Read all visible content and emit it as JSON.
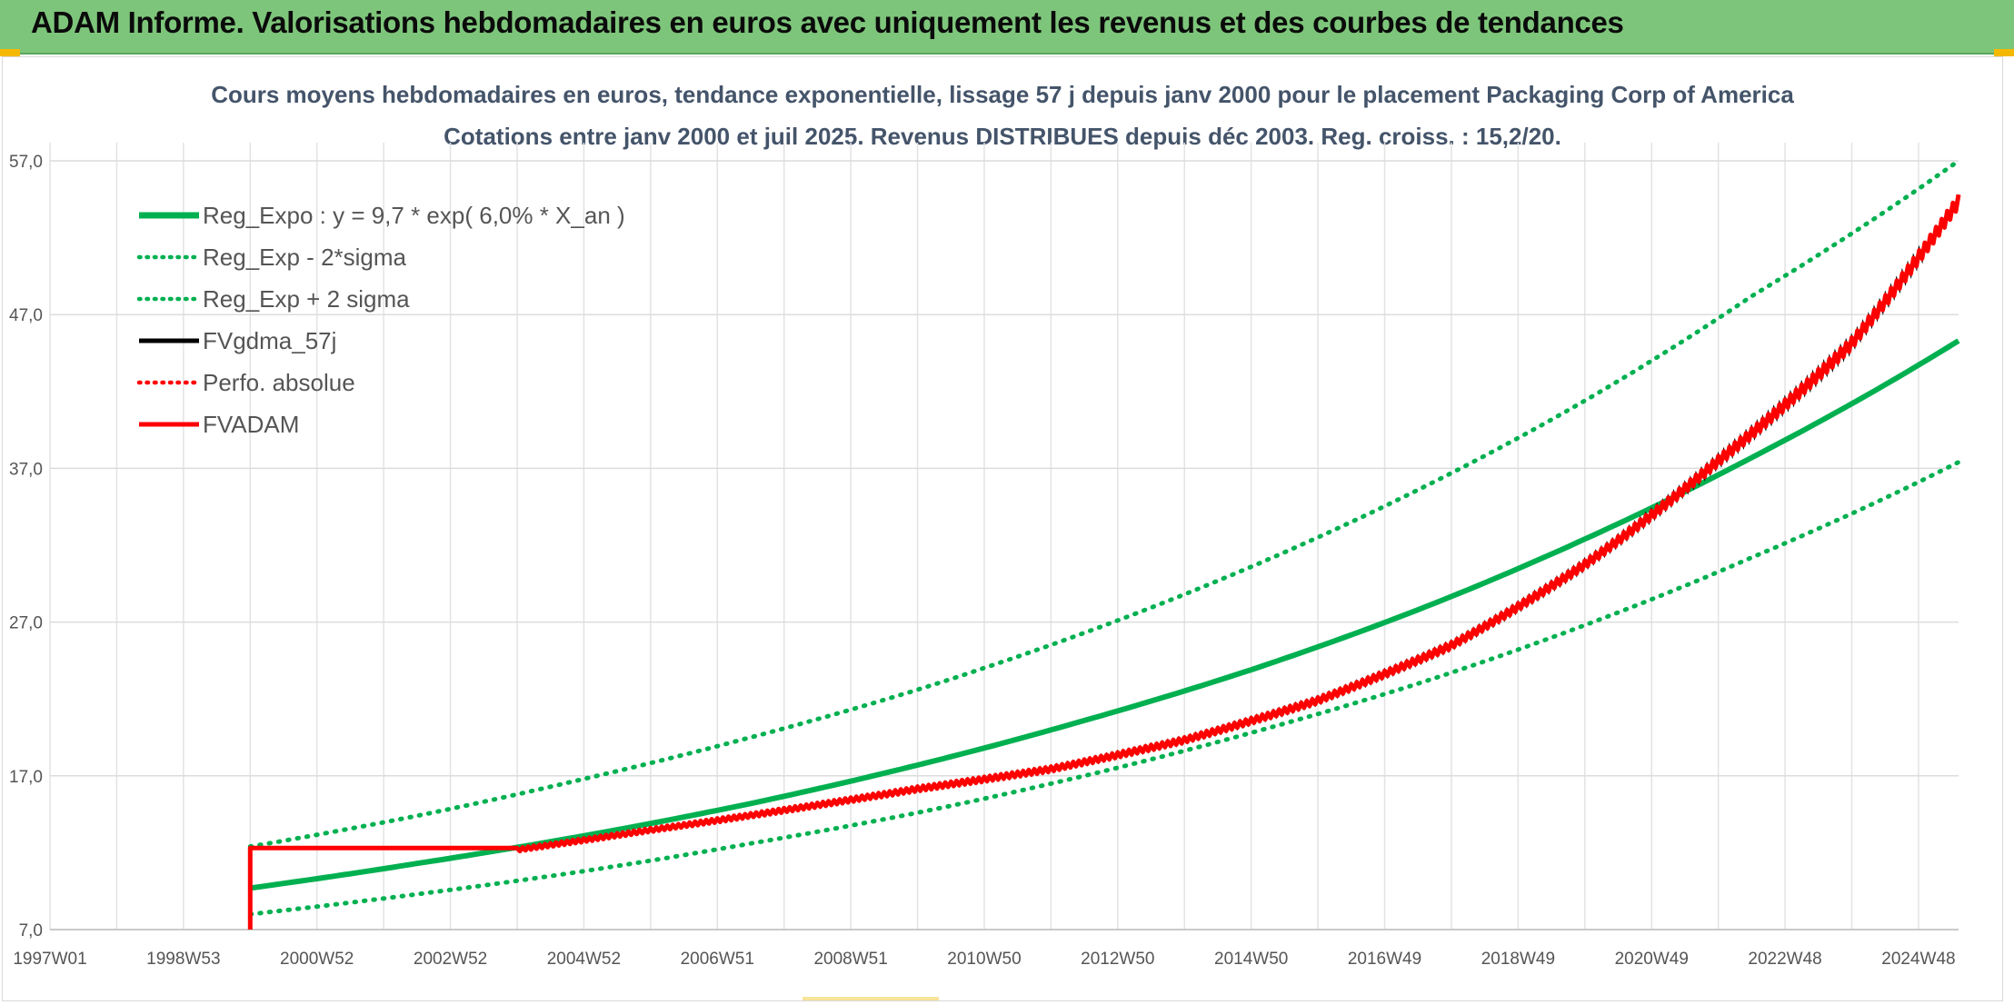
{
  "header": {
    "title": "ADAM Informe. Valorisations hebdomadaires en euros avec uniquement les revenus et des courbes de tendances"
  },
  "colors": {
    "banner": "#7dc57a",
    "trend_green": "#00b050",
    "fvadam_red": "#ff0000",
    "fvgdma_black": "#000000",
    "grid": "#d9d9d9"
  },
  "chart_data": {
    "type": "line",
    "title_line1": "Cours moyens hebdomadaires en euros, tendance exponentielle, lissage 57 j depuis janv 2000 pour le placement Packaging Corp of America",
    "title_line2": "Cotations entre janv 2000 et juil 2025. Revenus DISTRIBUES depuis déc 2003. Reg. croiss. : 15,2/20.",
    "xlabel": "",
    "ylabel": "",
    "x_range_years": [
      1997.0,
      2025.6
    ],
    "x_ticks": [
      {
        "label": "1997W01",
        "year": 1997.0
      },
      {
        "label": "1998W53",
        "year": 1999.0
      },
      {
        "label": "2000W52",
        "year": 2001.0
      },
      {
        "label": "2002W52",
        "year": 2003.0
      },
      {
        "label": "2004W52",
        "year": 2005.0
      },
      {
        "label": "2006W51",
        "year": 2007.0
      },
      {
        "label": "2008W51",
        "year": 2009.0
      },
      {
        "label": "2010W50",
        "year": 2011.0
      },
      {
        "label": "2012W50",
        "year": 2013.0
      },
      {
        "label": "2014W50",
        "year": 2015.0
      },
      {
        "label": "2016W49",
        "year": 2017.0
      },
      {
        "label": "2018W49",
        "year": 2019.0
      },
      {
        "label": "2020W49",
        "year": 2021.0
      },
      {
        "label": "2022W48",
        "year": 2023.0
      },
      {
        "label": "2024W48",
        "year": 2025.0
      }
    ],
    "ylim": [
      7.0,
      57.0
    ],
    "y_ticks": [
      "7,0",
      "17,0",
      "27,0",
      "37,0",
      "47,0",
      "57,0"
    ],
    "grid": true,
    "legend_position": "top-left",
    "legend": [
      {
        "name": "Reg_Expo : y = 9,7 * exp( 6,0% *  X_an )",
        "color": "#00b050",
        "style": "solid"
      },
      {
        "name": "Reg_Exp - 2*sigma",
        "color": "#00b050",
        "style": "dotted"
      },
      {
        "name": "Reg_Exp + 2 sigma",
        "color": "#00b050",
        "style": "dotted"
      },
      {
        "name": "FVgdma_57j",
        "color": "#000000",
        "style": "solid"
      },
      {
        "name": "Perfo. absolue",
        "color": "#ff0000",
        "style": "dotted"
      },
      {
        "name": "FVADAM",
        "color": "#ff0000",
        "style": "solid"
      }
    ],
    "series": [
      {
        "name": "Reg_Expo : y = 9,7 * exp( 6,0% *  X_an )",
        "x": [
          2000.0,
          2002.5,
          2005.0,
          2007.5,
          2010.0,
          2012.5,
          2015.0,
          2017.5,
          2020.0,
          2022.5,
          2025.6
        ],
        "y": [
          9.7,
          11.3,
          13.1,
          15.2,
          17.7,
          20.6,
          23.9,
          27.8,
          32.4,
          37.7,
          45.3
        ]
      },
      {
        "name": "Reg_Exp - 2*sigma",
        "x": [
          2000.0,
          2002.5,
          2005.0,
          2007.5,
          2010.0,
          2012.5,
          2015.0,
          2017.5,
          2020.0,
          2022.5,
          2025.6
        ],
        "y": [
          8.0,
          9.3,
          10.8,
          12.6,
          14.6,
          17.0,
          19.8,
          23.0,
          26.8,
          31.2,
          37.4
        ]
      },
      {
        "name": "Reg_Exp + 2 sigma",
        "x": [
          2000.0,
          2002.5,
          2005.0,
          2007.5,
          2010.0,
          2012.5,
          2015.0,
          2017.5,
          2020.0,
          2022.5,
          2025.6
        ],
        "y": [
          12.4,
          14.4,
          16.8,
          19.5,
          22.6,
          26.3,
          30.6,
          35.6,
          41.4,
          48.2,
          57.0
        ]
      },
      {
        "name": "FVADAM",
        "x": [
          2000.0,
          2000.0,
          2004.0,
          2006.0,
          2008.0,
          2010.0,
          2012.0,
          2014.0,
          2016.0,
          2018.0,
          2020.0,
          2022.0,
          2024.0,
          2025.6
        ],
        "y": [
          7.0,
          12.3,
          12.3,
          13.6,
          14.9,
          16.3,
          17.6,
          19.5,
          22.1,
          25.7,
          31.0,
          37.8,
          45.5,
          54.8
        ]
      },
      {
        "name": "Perfo. absolue",
        "x": [
          2000.0,
          2000.0,
          2004.0,
          2006.0,
          2008.0,
          2010.0,
          2012.0,
          2014.0,
          2016.0,
          2018.0,
          2020.0,
          2022.0,
          2024.0,
          2025.6
        ],
        "y": [
          7.0,
          12.3,
          12.3,
          13.6,
          14.9,
          16.3,
          17.6,
          19.5,
          22.1,
          25.7,
          31.0,
          37.8,
          45.5,
          54.8
        ]
      },
      {
        "name": "FVgdma_57j",
        "x": [
          2000.0,
          2000.0,
          2004.0,
          2006.0,
          2008.0,
          2010.0,
          2012.0,
          2014.0,
          2016.0,
          2018.0,
          2020.0,
          2022.0,
          2024.0,
          2025.6
        ],
        "y": [
          7.0,
          12.3,
          12.3,
          13.6,
          14.9,
          16.3,
          17.6,
          19.5,
          22.1,
          25.7,
          31.0,
          37.8,
          45.5,
          54.8
        ]
      }
    ]
  }
}
